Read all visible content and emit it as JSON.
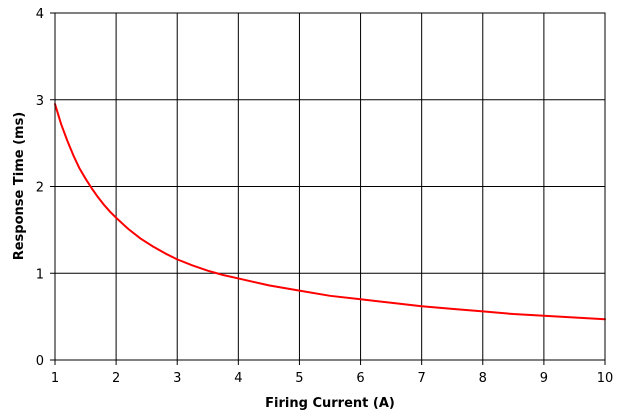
{
  "chart_data": {
    "type": "line",
    "title": "",
    "xlabel": "Firing Current (A)",
    "ylabel": "Response Time (ms)",
    "xlim": [
      1,
      10
    ],
    "ylim": [
      0,
      4
    ],
    "x_ticks": [
      "1",
      "2",
      "3",
      "4",
      "5",
      "6",
      "7",
      "8",
      "9",
      "10"
    ],
    "y_ticks": [
      "0",
      "1",
      "2",
      "3",
      "4"
    ],
    "grid": true,
    "legend": "none",
    "series": [
      {
        "color": "#ff0000",
        "x": [
          1.0,
          1.1,
          1.2,
          1.3,
          1.4,
          1.5,
          1.6,
          1.7,
          1.8,
          1.9,
          2.0,
          2.2,
          2.4,
          2.6,
          2.8,
          3.0,
          3.25,
          3.5,
          3.75,
          4.0,
          4.5,
          5.0,
          5.5,
          6.0,
          6.5,
          7.0,
          7.5,
          8.0,
          8.5,
          9.0,
          9.5,
          10.0
        ],
        "y": [
          2.95,
          2.72,
          2.53,
          2.36,
          2.21,
          2.09,
          1.98,
          1.88,
          1.79,
          1.71,
          1.64,
          1.51,
          1.4,
          1.31,
          1.23,
          1.16,
          1.09,
          1.03,
          0.98,
          0.94,
          0.86,
          0.8,
          0.74,
          0.7,
          0.66,
          0.62,
          0.59,
          0.56,
          0.53,
          0.51,
          0.49,
          0.47
        ]
      }
    ]
  }
}
